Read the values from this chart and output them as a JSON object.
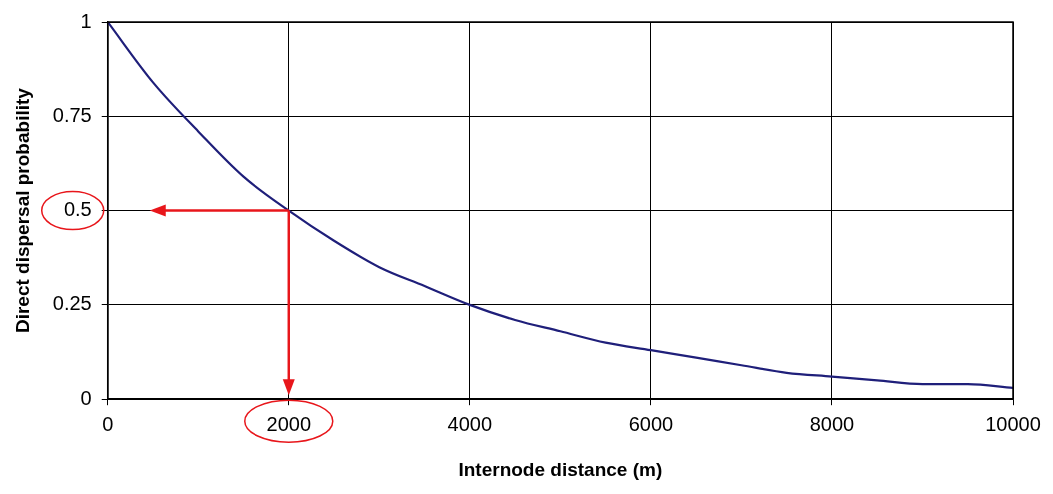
{
  "chart_data": {
    "type": "line",
    "xlabel": "Internode distance (m)",
    "ylabel": "Direct dispersal probability",
    "x": [
      0,
      500,
      1000,
      1500,
      2000,
      2500,
      3000,
      3500,
      4000,
      4500,
      5000,
      5500,
      6000,
      6500,
      7000,
      7500,
      8000,
      8500,
      9000,
      9500,
      10000
    ],
    "series": [
      {
        "color": "#1f1f7a",
        "values": [
          1,
          0.84,
          0.71,
          0.59,
          0.5,
          0.42,
          0.35,
          0.3,
          0.25,
          0.21,
          0.18,
          0.15,
          0.13,
          0.11,
          0.09,
          0.07,
          0.06,
          0.05,
          0.04,
          0.04,
          0.03
        ]
      }
    ],
    "xlim": [
      0,
      10000
    ],
    "xticks": [
      0,
      2000,
      4000,
      6000,
      8000,
      10000
    ],
    "ylim": [
      0,
      1
    ],
    "yticks": [
      0,
      0.25,
      0.5,
      0.75,
      1
    ],
    "grid": true,
    "legend": false,
    "marker": "none",
    "line_style": "solid"
  }
}
